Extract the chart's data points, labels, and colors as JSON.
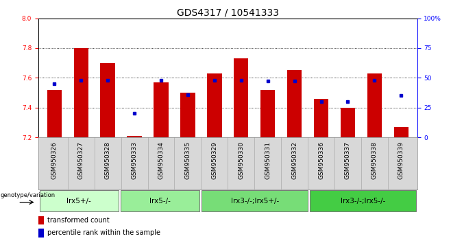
{
  "title": "GDS4317 / 10541333",
  "samples": [
    "GSM950326",
    "GSM950327",
    "GSM950328",
    "GSM950333",
    "GSM950334",
    "GSM950335",
    "GSM950329",
    "GSM950330",
    "GSM950331",
    "GSM950332",
    "GSM950336",
    "GSM950337",
    "GSM950338",
    "GSM950339"
  ],
  "bar_values": [
    7.52,
    7.8,
    7.7,
    7.21,
    7.57,
    7.5,
    7.63,
    7.73,
    7.52,
    7.65,
    7.46,
    7.4,
    7.63,
    7.27
  ],
  "dot_values": [
    45,
    48,
    48,
    20,
    48,
    36,
    48,
    48,
    47,
    47,
    30,
    30,
    48,
    35
  ],
  "ymin": 7.2,
  "ymax": 8.0,
  "yticks": [
    7.2,
    7.4,
    7.6,
    7.8,
    8.0
  ],
  "y2min": 0,
  "y2max": 100,
  "y2ticks": [
    0,
    25,
    50,
    75,
    100
  ],
  "bar_color": "#cc0000",
  "dot_color": "#0000cc",
  "bar_bottom": 7.2,
  "groups": [
    {
      "label": "lrx5+/-",
      "start": 0,
      "end": 3,
      "color": "#ccffcc"
    },
    {
      "label": "lrx5-/-",
      "start": 3,
      "end": 6,
      "color": "#99ee99"
    },
    {
      "label": "lrx3-/-;lrx5+/-",
      "start": 6,
      "end": 10,
      "color": "#77dd77"
    },
    {
      "label": "lrx3-/-;lrx5-/-",
      "start": 10,
      "end": 14,
      "color": "#44cc44"
    }
  ],
  "genotype_label": "genotype/variation",
  "legend_bar_label": "transformed count",
  "legend_dot_label": "percentile rank within the sample",
  "title_fontsize": 10,
  "tick_fontsize": 6.5,
  "group_fontsize": 7.5
}
